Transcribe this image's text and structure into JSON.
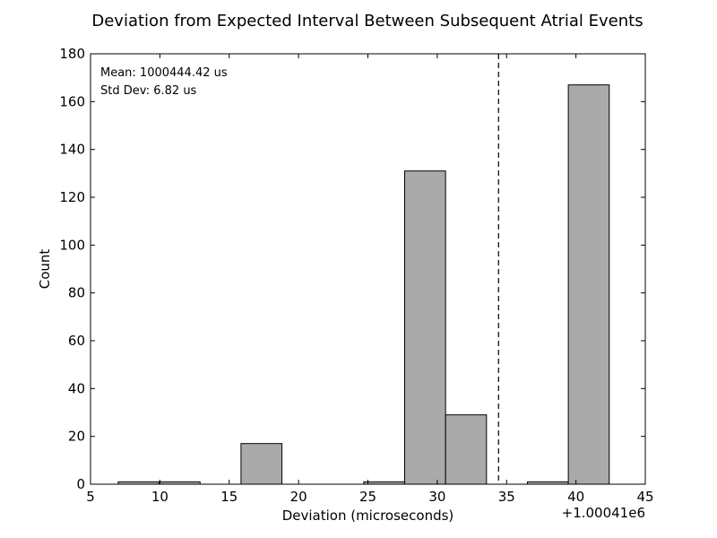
{
  "chart_data": {
    "type": "bar",
    "title": "Deviation from Expected Interval Between Subsequent Atrial Events",
    "xlabel": "Deviation (microseconds)",
    "ylabel": "Count",
    "x_offset_label": "+1.00041e6",
    "xlim": [
      5,
      45
    ],
    "ylim": [
      0,
      180
    ],
    "xticks": [
      5,
      10,
      15,
      20,
      25,
      30,
      35,
      40,
      45
    ],
    "yticks": [
      0,
      20,
      40,
      60,
      80,
      100,
      120,
      140,
      160,
      180
    ],
    "bins": [
      {
        "x0": 7.0,
        "x1": 9.95,
        "count": 1
      },
      {
        "x0": 9.95,
        "x1": 12.9,
        "count": 1
      },
      {
        "x0": 12.9,
        "x1": 15.85,
        "count": 0
      },
      {
        "x0": 15.85,
        "x1": 18.8,
        "count": 17
      },
      {
        "x0": 18.8,
        "x1": 21.75,
        "count": 0
      },
      {
        "x0": 21.75,
        "x1": 24.7,
        "count": 0
      },
      {
        "x0": 24.7,
        "x1": 27.65,
        "count": 1
      },
      {
        "x0": 27.65,
        "x1": 30.6,
        "count": 131
      },
      {
        "x0": 30.6,
        "x1": 33.55,
        "count": 29
      },
      {
        "x0": 33.55,
        "x1": 36.5,
        "count": 0
      },
      {
        "x0": 36.5,
        "x1": 39.45,
        "count": 1
      },
      {
        "x0": 39.45,
        "x1": 42.4,
        "count": 167
      }
    ],
    "mean_line_x": 34.42,
    "annotations": {
      "mean": "Mean: 1000444.42 us",
      "std": "Std Dev: 6.82 us"
    },
    "grid": false,
    "colors": {
      "bar_fill": "#aaaaaa",
      "bar_edge": "#000000",
      "mean_line": "#000000"
    }
  }
}
